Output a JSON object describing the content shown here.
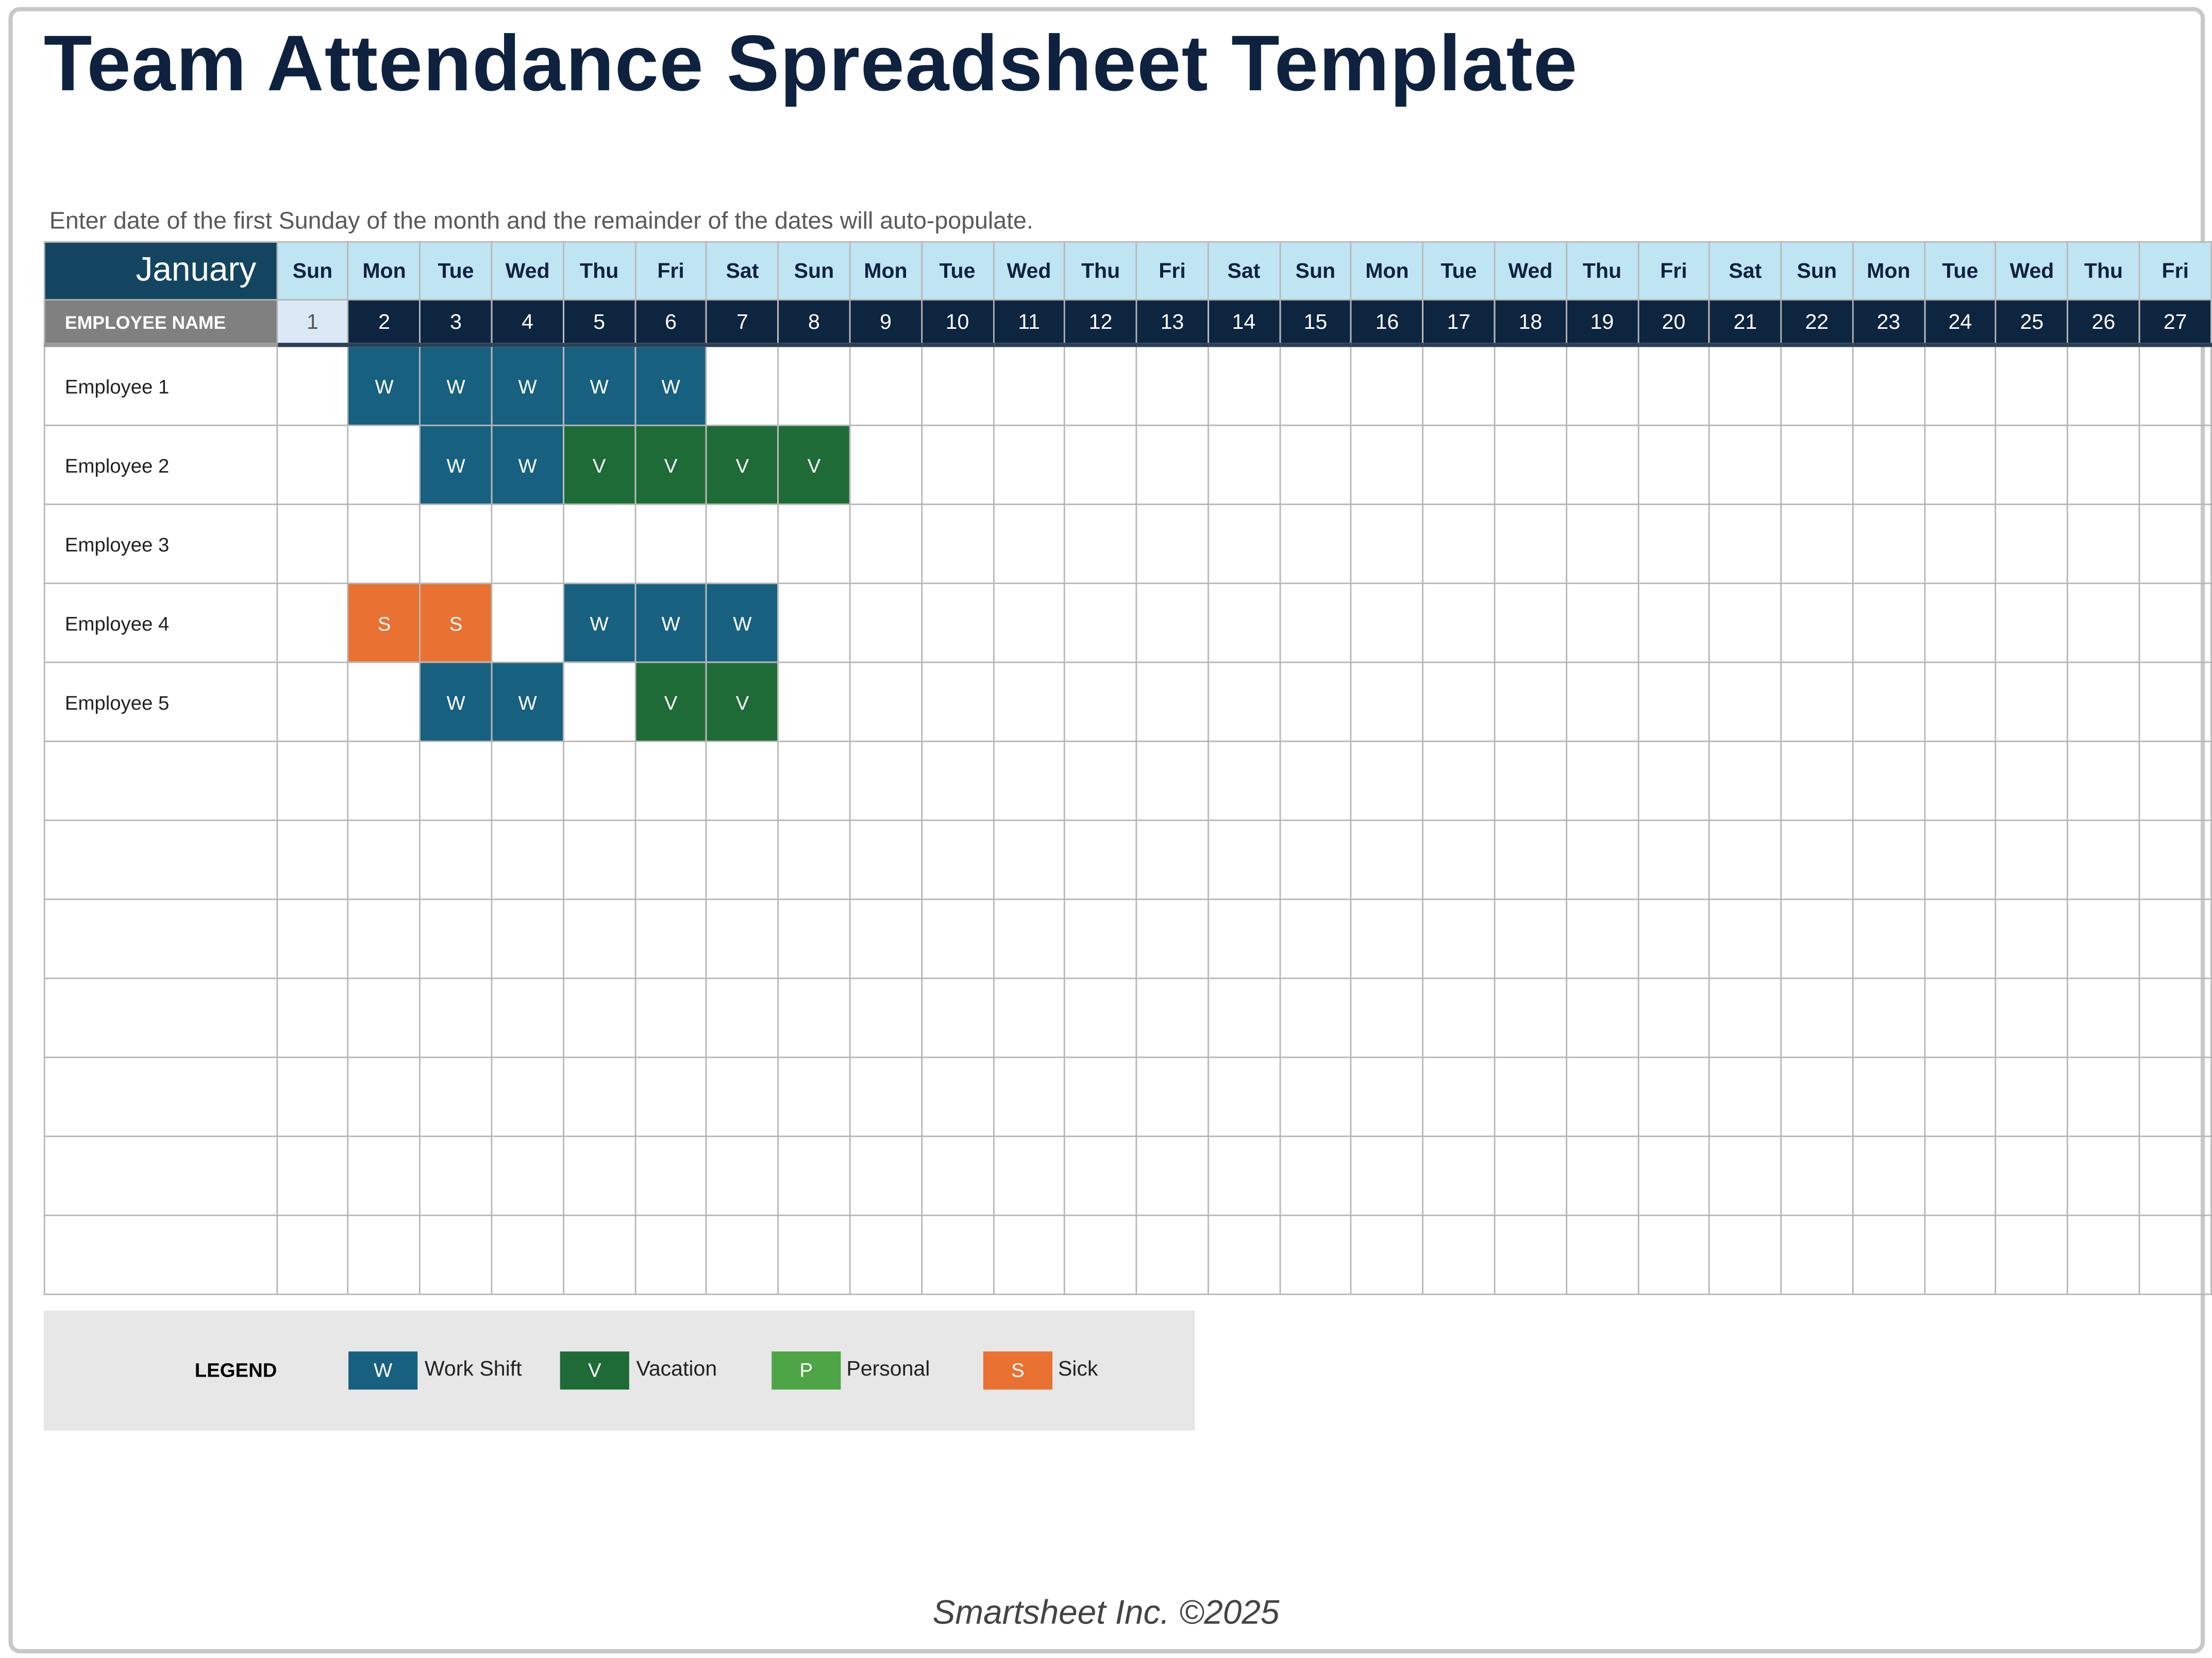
{
  "title": "Team Attendance Spreadsheet Template",
  "instruction": "Enter date of the first Sunday of the month and the remainder of the dates will auto-populate.",
  "month": "January",
  "employee_header": "EMPLOYEE NAME",
  "days": [
    {
      "dow": "Sun",
      "date": "1"
    },
    {
      "dow": "Mon",
      "date": "2"
    },
    {
      "dow": "Tue",
      "date": "3"
    },
    {
      "dow": "Wed",
      "date": "4"
    },
    {
      "dow": "Thu",
      "date": "5"
    },
    {
      "dow": "Fri",
      "date": "6"
    },
    {
      "dow": "Sat",
      "date": "7"
    },
    {
      "dow": "Sun",
      "date": "8"
    },
    {
      "dow": "Mon",
      "date": "9"
    },
    {
      "dow": "Tue",
      "date": "10"
    },
    {
      "dow": "Wed",
      "date": "11"
    },
    {
      "dow": "Thu",
      "date": "12"
    },
    {
      "dow": "Fri",
      "date": "13"
    },
    {
      "dow": "Sat",
      "date": "14"
    },
    {
      "dow": "Sun",
      "date": "15"
    },
    {
      "dow": "Mon",
      "date": "16"
    },
    {
      "dow": "Tue",
      "date": "17"
    },
    {
      "dow": "Wed",
      "date": "18"
    },
    {
      "dow": "Thu",
      "date": "19"
    },
    {
      "dow": "Fri",
      "date": "20"
    },
    {
      "dow": "Sat",
      "date": "21"
    },
    {
      "dow": "Sun",
      "date": "22"
    },
    {
      "dow": "Mon",
      "date": "23"
    },
    {
      "dow": "Tue",
      "date": "24"
    },
    {
      "dow": "Wed",
      "date": "25"
    },
    {
      "dow": "Thu",
      "date": "26"
    },
    {
      "dow": "Fri",
      "date": "27"
    }
  ],
  "rows": [
    {
      "name": "Employee 1",
      "cells": [
        "",
        "W",
        "W",
        "W",
        "W",
        "W",
        "",
        "",
        "",
        "",
        "",
        "",
        "",
        "",
        "",
        "",
        "",
        "",
        "",
        "",
        "",
        "",
        "",
        "",
        "",
        "",
        ""
      ]
    },
    {
      "name": "Employee 2",
      "cells": [
        "",
        "",
        "W",
        "W",
        "V",
        "V",
        "V",
        "V",
        "",
        "",
        "",
        "",
        "",
        "",
        "",
        "",
        "",
        "",
        "",
        "",
        "",
        "",
        "",
        "",
        "",
        "",
        ""
      ]
    },
    {
      "name": "Employee 3",
      "cells": [
        "",
        "",
        "",
        "",
        "",
        "",
        "",
        "",
        "",
        "",
        "",
        "",
        "",
        "",
        "",
        "",
        "",
        "",
        "",
        "",
        "",
        "",
        "",
        "",
        "",
        "",
        ""
      ]
    },
    {
      "name": "Employee 4",
      "cells": [
        "",
        "S",
        "S",
        "",
        "W",
        "W",
        "W",
        "",
        "",
        "",
        "",
        "",
        "",
        "",
        "",
        "",
        "",
        "",
        "",
        "",
        "",
        "",
        "",
        "",
        "",
        "",
        ""
      ]
    },
    {
      "name": "Employee 5",
      "cells": [
        "",
        "",
        "W",
        "W",
        "",
        "V",
        "V",
        "",
        "",
        "",
        "",
        "",
        "",
        "",
        "",
        "",
        "",
        "",
        "",
        "",
        "",
        "",
        "",
        "",
        "",
        "",
        ""
      ]
    },
    {
      "name": "",
      "cells": []
    },
    {
      "name": "",
      "cells": []
    },
    {
      "name": "",
      "cells": []
    },
    {
      "name": "",
      "cells": []
    },
    {
      "name": "",
      "cells": []
    },
    {
      "name": "",
      "cells": []
    },
    {
      "name": "",
      "cells": []
    }
  ],
  "legend": {
    "label": "LEGEND",
    "items": [
      {
        "code": "W",
        "label": "Work Shift",
        "color": "#17607f"
      },
      {
        "code": "V",
        "label": "Vacation",
        "color": "#1e6b38"
      },
      {
        "code": "P",
        "label": "Personal",
        "color": "#4ea546"
      },
      {
        "code": "S",
        "label": "Sick",
        "color": "#e97132"
      }
    ]
  },
  "footer": "Smartsheet Inc. ©2025"
}
